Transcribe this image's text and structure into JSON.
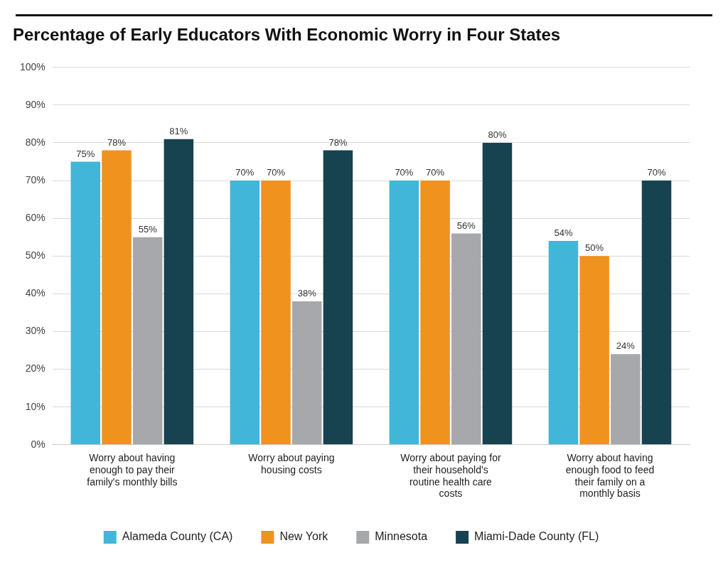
{
  "chart_data": {
    "type": "bar",
    "title": "Percentage of Early Educators With Economic Worry in Four States",
    "categories": [
      "Worry about having enough to pay their family's monthly bills",
      "Worry about paying housing costs",
      "Worry about paying for their household's routine health care costs",
      "Worry about having enough food to feed their family on a monthly basis"
    ],
    "series": [
      {
        "name": "Alameda County (CA)",
        "color": "#41b6d8",
        "values": [
          75,
          70,
          70,
          54
        ],
        "value_labels": [
          "75%",
          "70%",
          "70%",
          "54%"
        ]
      },
      {
        "name": "New York",
        "color": "#f0921e",
        "values": [
          78,
          70,
          70,
          50
        ],
        "value_labels": [
          "78%",
          "70%",
          "70%",
          "50%"
        ]
      },
      {
        "name": "Minnesota",
        "color": "#a7a8ac",
        "values": [
          55,
          38,
          56,
          24
        ],
        "value_labels": [
          "55%",
          "38%",
          "56%",
          "24%"
        ]
      },
      {
        "name": "Miami-Dade County (FL)",
        "color": "#17424f",
        "values": [
          81,
          78,
          80,
          70
        ],
        "value_labels": [
          "81%",
          "78%",
          "80%",
          "70%"
        ]
      }
    ],
    "ylim": [
      0,
      100
    ],
    "yticks": [
      {
        "value": 0,
        "label": "0%"
      },
      {
        "value": 10,
        "label": "10%"
      },
      {
        "value": 20,
        "label": "20%"
      },
      {
        "value": 30,
        "label": "30%"
      },
      {
        "value": 40,
        "label": "40%"
      },
      {
        "value": 50,
        "label": "50%"
      },
      {
        "value": 60,
        "label": "60%"
      },
      {
        "value": 70,
        "label": "70%"
      },
      {
        "value": 80,
        "label": "80%"
      },
      {
        "value": 90,
        "label": "90%"
      },
      {
        "value": 100,
        "label": "100%"
      }
    ],
    "grid": true,
    "legend": "bottom",
    "data_labels": true
  }
}
